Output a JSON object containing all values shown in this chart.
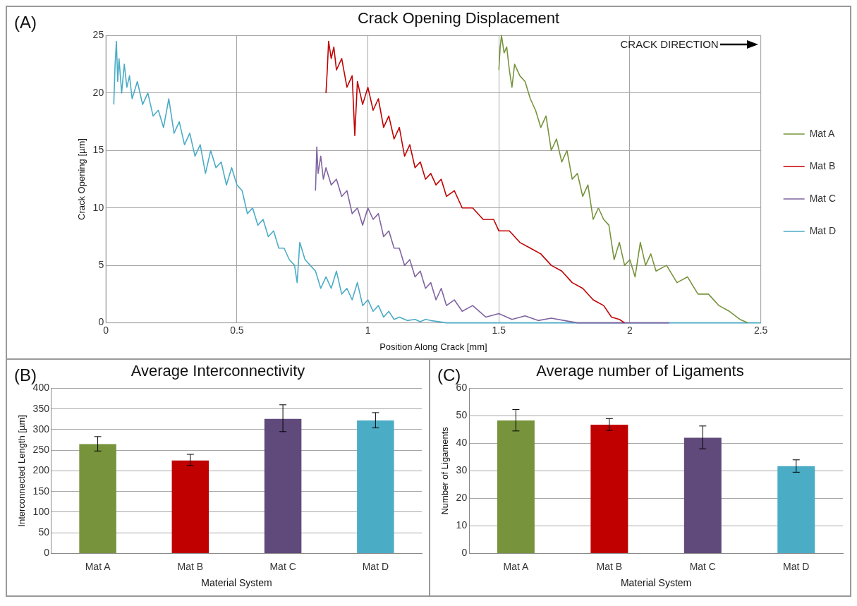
{
  "chart_data": [
    {
      "type": "line",
      "title": "Crack Opening Displacement",
      "xlabel": "Position Along Crack [mm]",
      "ylabel": "Crack Opening [µm]",
      "annotations": [
        "(A)",
        "CRACK DIRECTION"
      ],
      "xlim": [
        0,
        2.5
      ],
      "xticks": [
        0,
        0.5,
        1,
        1.5,
        2,
        2.5
      ],
      "ylim": [
        0,
        25
      ],
      "yticks": [
        0,
        5,
        10,
        15,
        20,
        25
      ],
      "grid": true,
      "legend": "right",
      "series": [
        {
          "name": "Mat A",
          "color": "#77933c",
          "x": [
            1.5,
            1.505,
            1.51,
            1.52,
            1.53,
            1.54,
            1.55,
            1.56,
            1.58,
            1.6,
            1.62,
            1.64,
            1.66,
            1.68,
            1.7,
            1.72,
            1.74,
            1.76,
            1.78,
            1.8,
            1.82,
            1.84,
            1.86,
            1.88,
            1.9,
            1.92,
            1.94,
            1.96,
            1.98,
            2.0,
            2.02,
            2.04,
            2.06,
            2.08,
            2.1,
            2.14,
            2.18,
            2.22,
            2.26,
            2.3,
            2.34,
            2.38,
            2.42,
            2.45
          ],
          "values": [
            22,
            24,
            25,
            23.5,
            24,
            22,
            20.5,
            22.5,
            21.5,
            21,
            19.5,
            18.5,
            17,
            18,
            15,
            16,
            14,
            15,
            12.5,
            13,
            11,
            12,
            9,
            10,
            9,
            8.5,
            5.5,
            7,
            5,
            5.5,
            4,
            7,
            5,
            6,
            4.5,
            5,
            3.5,
            4,
            2.5,
            2.5,
            1.5,
            1,
            0.3,
            0
          ]
        },
        {
          "name": "Mat B",
          "color": "#c00000",
          "x": [
            0.84,
            0.845,
            0.85,
            0.86,
            0.87,
            0.88,
            0.9,
            0.92,
            0.94,
            0.95,
            0.96,
            0.98,
            1.0,
            1.02,
            1.04,
            1.06,
            1.08,
            1.1,
            1.12,
            1.14,
            1.16,
            1.18,
            1.2,
            1.22,
            1.24,
            1.26,
            1.28,
            1.3,
            1.33,
            1.36,
            1.4,
            1.44,
            1.48,
            1.5,
            1.54,
            1.58,
            1.62,
            1.66,
            1.7,
            1.74,
            1.78,
            1.82,
            1.86,
            1.9,
            1.93,
            1.96,
            1.98
          ],
          "values": [
            20,
            22,
            24.5,
            23,
            24,
            22,
            23,
            20.5,
            21.5,
            16.3,
            21,
            19,
            20.5,
            18.5,
            19.5,
            17,
            18,
            16,
            17,
            14.5,
            15.5,
            13.5,
            14,
            12.5,
            13,
            12,
            12.5,
            11,
            11.5,
            10,
            10,
            9,
            9,
            8,
            8,
            7,
            6.5,
            6,
            5,
            4.5,
            3.5,
            3,
            2,
            1.5,
            0.5,
            0.3,
            0
          ]
        },
        {
          "name": "Mat C",
          "color": "#8064a2",
          "x": [
            0.8,
            0.805,
            0.81,
            0.82,
            0.83,
            0.84,
            0.86,
            0.88,
            0.9,
            0.92,
            0.94,
            0.96,
            0.98,
            1.0,
            1.02,
            1.04,
            1.06,
            1.08,
            1.1,
            1.12,
            1.14,
            1.16,
            1.18,
            1.2,
            1.22,
            1.24,
            1.26,
            1.28,
            1.3,
            1.33,
            1.36,
            1.4,
            1.45,
            1.5,
            1.55,
            1.6,
            1.65,
            1.7,
            1.75,
            1.8,
            2.15
          ],
          "values": [
            11.5,
            15.3,
            13,
            14.5,
            12.5,
            13.5,
            12,
            12.5,
            11,
            11.5,
            9.5,
            10,
            8.5,
            10,
            9,
            9.5,
            7.5,
            8,
            6.5,
            6.5,
            5,
            5.5,
            4,
            4.5,
            3,
            3.5,
            2,
            3,
            1.5,
            2,
            1,
            1.5,
            0.5,
            0.8,
            0.3,
            0.6,
            0.2,
            0.4,
            0.2,
            0,
            0
          ]
        },
        {
          "name": "Mat D",
          "color": "#4bacc6",
          "x": [
            0.03,
            0.035,
            0.04,
            0.045,
            0.05,
            0.06,
            0.07,
            0.08,
            0.09,
            0.1,
            0.12,
            0.14,
            0.16,
            0.18,
            0.2,
            0.22,
            0.24,
            0.26,
            0.28,
            0.3,
            0.32,
            0.34,
            0.36,
            0.38,
            0.4,
            0.42,
            0.44,
            0.46,
            0.48,
            0.5,
            0.52,
            0.54,
            0.56,
            0.58,
            0.6,
            0.62,
            0.64,
            0.66,
            0.68,
            0.7,
            0.72,
            0.73,
            0.74,
            0.76,
            0.78,
            0.8,
            0.82,
            0.84,
            0.86,
            0.88,
            0.9,
            0.92,
            0.94,
            0.96,
            0.98,
            1.0,
            1.02,
            1.04,
            1.06,
            1.08,
            1.1,
            1.12,
            1.15,
            1.18,
            1.2,
            1.22,
            1.24,
            1.3,
            2.5
          ],
          "values": [
            19,
            22.5,
            24.5,
            21,
            23,
            20,
            22.5,
            20.5,
            21.5,
            19.5,
            21,
            19,
            20,
            18,
            18.5,
            17,
            19.5,
            16.5,
            17.5,
            15.5,
            16.5,
            14.5,
            15.5,
            13,
            15,
            13.5,
            14,
            12,
            13.5,
            12,
            11.5,
            9.5,
            10,
            8.5,
            9,
            7.5,
            8,
            6.5,
            6.5,
            5.5,
            5,
            3.5,
            7,
            5.5,
            5,
            4.5,
            3,
            4,
            3,
            4.5,
            2.5,
            3,
            2,
            3.5,
            1.5,
            2,
            1,
            1.5,
            0.5,
            1,
            0.3,
            0.5,
            0.2,
            0.3,
            0.1,
            0.3,
            0.2,
            0,
            0
          ]
        }
      ]
    },
    {
      "type": "bar",
      "title": "Average Interconnectivity",
      "xlabel": "Material System",
      "ylabel": "Interconnected Length [µm]",
      "annotations": [
        "(B)"
      ],
      "categories": [
        "Mat A",
        "Mat B",
        "Mat C",
        "Mat D"
      ],
      "values": [
        265,
        225,
        326,
        322
      ],
      "colors": [
        "#77933c",
        "#c00000",
        "#604a7b",
        "#4bacc6"
      ],
      "errors": [
        [
          248,
          283
        ],
        [
          213,
          240
        ],
        [
          295,
          360
        ],
        [
          304,
          341
        ]
      ],
      "ylim": [
        0,
        400
      ],
      "yticks": [
        0,
        50,
        100,
        150,
        200,
        250,
        300,
        350,
        400
      ],
      "grid": "y"
    },
    {
      "type": "bar",
      "title": "Average number of Ligaments",
      "xlabel": "Material System",
      "ylabel": "Number of Ligaments",
      "annotations": [
        "(C)"
      ],
      "categories": [
        "Mat A",
        "Mat B",
        "Mat C",
        "Mat D"
      ],
      "values": [
        48.3,
        46.8,
        42,
        31.7
      ],
      "colors": [
        "#77933c",
        "#c00000",
        "#604a7b",
        "#4bacc6"
      ],
      "errors": [
        [
          44.5,
          52.3
        ],
        [
          44.7,
          49
        ],
        [
          38,
          46.3
        ],
        [
          29.5,
          34
        ]
      ],
      "ylim": [
        0,
        60
      ],
      "yticks": [
        0,
        10,
        20,
        30,
        40,
        50,
        60
      ],
      "grid": "y"
    }
  ]
}
